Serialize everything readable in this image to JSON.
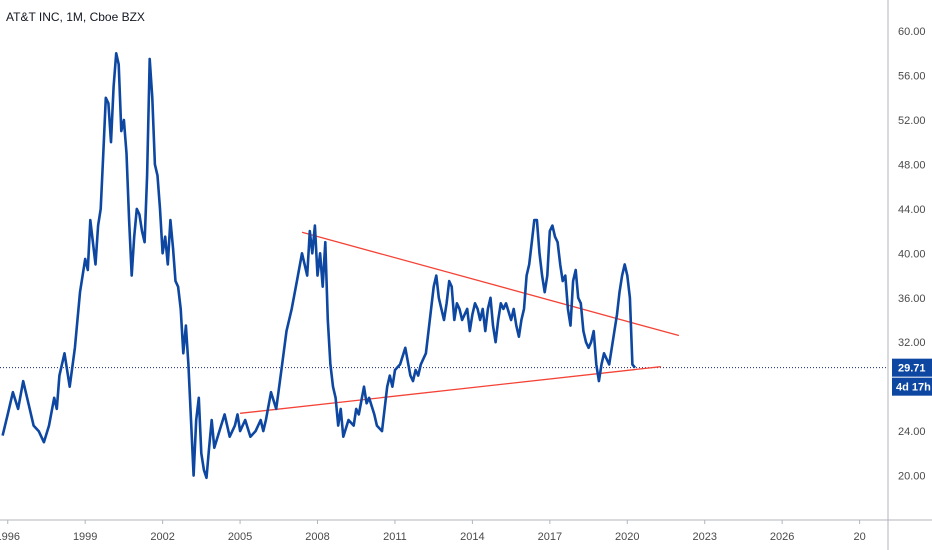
{
  "chart_data": {
    "type": "line",
    "title": "AT&T INC, 1M, Cboe BZX",
    "series": [
      {
        "values": [
          [
            1995.8,
            23.6
          ],
          [
            1996.0,
            25.5
          ],
          [
            1996.2,
            27.5
          ],
          [
            1996.4,
            26.0
          ],
          [
            1996.6,
            28.5
          ],
          [
            1996.8,
            26.5
          ],
          [
            1997.0,
            24.5
          ],
          [
            1997.2,
            24.0
          ],
          [
            1997.4,
            23.0
          ],
          [
            1997.6,
            24.5
          ],
          [
            1997.8,
            27.0
          ],
          [
            1997.9,
            26.0
          ],
          [
            1998.0,
            29.0
          ],
          [
            1998.2,
            31.0
          ],
          [
            1998.4,
            28.0
          ],
          [
            1998.6,
            31.5
          ],
          [
            1998.8,
            36.5
          ],
          [
            1998.9,
            38.0
          ],
          [
            1999.0,
            39.5
          ],
          [
            1999.1,
            38.5
          ],
          [
            1999.2,
            43.0
          ],
          [
            1999.3,
            41.0
          ],
          [
            1999.4,
            39.0
          ],
          [
            1999.5,
            42.5
          ],
          [
            1999.6,
            44.0
          ],
          [
            1999.7,
            49.0
          ],
          [
            1999.8,
            54.0
          ],
          [
            1999.9,
            53.5
          ],
          [
            2000.0,
            50.0
          ],
          [
            2000.1,
            55.0
          ],
          [
            2000.2,
            58.0
          ],
          [
            2000.3,
            57.0
          ],
          [
            2000.4,
            51.0
          ],
          [
            2000.5,
            52.0
          ],
          [
            2000.6,
            49.0
          ],
          [
            2000.7,
            43.0
          ],
          [
            2000.8,
            38.0
          ],
          [
            2000.9,
            41.5
          ],
          [
            2001.0,
            44.0
          ],
          [
            2001.1,
            43.5
          ],
          [
            2001.2,
            42.0
          ],
          [
            2001.3,
            41.0
          ],
          [
            2001.4,
            47.0
          ],
          [
            2001.5,
            57.5
          ],
          [
            2001.6,
            54.0
          ],
          [
            2001.7,
            48.0
          ],
          [
            2001.8,
            47.0
          ],
          [
            2001.9,
            44.0
          ],
          [
            2002.0,
            40.0
          ],
          [
            2002.1,
            41.5
          ],
          [
            2002.2,
            39.0
          ],
          [
            2002.3,
            43.0
          ],
          [
            2002.4,
            40.5
          ],
          [
            2002.5,
            37.5
          ],
          [
            2002.6,
            37.0
          ],
          [
            2002.7,
            35.0
          ],
          [
            2002.8,
            31.0
          ],
          [
            2002.9,
            33.5
          ],
          [
            2003.0,
            30.0
          ],
          [
            2003.1,
            25.0
          ],
          [
            2003.2,
            20.0
          ],
          [
            2003.3,
            25.0
          ],
          [
            2003.4,
            27.0
          ],
          [
            2003.5,
            22.0
          ],
          [
            2003.6,
            20.5
          ],
          [
            2003.7,
            19.8
          ],
          [
            2003.8,
            22.5
          ],
          [
            2003.9,
            25.0
          ],
          [
            2004.0,
            22.5
          ],
          [
            2004.2,
            24.0
          ],
          [
            2004.4,
            25.5
          ],
          [
            2004.6,
            23.5
          ],
          [
            2004.8,
            24.5
          ],
          [
            2004.9,
            25.5
          ],
          [
            2005.0,
            24.0
          ],
          [
            2005.2,
            25.0
          ],
          [
            2005.4,
            23.5
          ],
          [
            2005.6,
            24.0
          ],
          [
            2005.8,
            25.0
          ],
          [
            2005.9,
            24.0
          ],
          [
            2006.0,
            25.0
          ],
          [
            2006.2,
            27.5
          ],
          [
            2006.4,
            26.0
          ],
          [
            2006.6,
            29.5
          ],
          [
            2006.8,
            33.0
          ],
          [
            2006.9,
            34.0
          ],
          [
            2007.0,
            35.0
          ],
          [
            2007.2,
            37.5
          ],
          [
            2007.4,
            40.0
          ],
          [
            2007.6,
            38.0
          ],
          [
            2007.7,
            42.0
          ],
          [
            2007.8,
            40.0
          ],
          [
            2007.9,
            42.5
          ],
          [
            2008.0,
            38.0
          ],
          [
            2008.1,
            40.0
          ],
          [
            2008.2,
            37.0
          ],
          [
            2008.3,
            41.0
          ],
          [
            2008.4,
            34.0
          ],
          [
            2008.5,
            30.0
          ],
          [
            2008.6,
            28.0
          ],
          [
            2008.7,
            27.0
          ],
          [
            2008.8,
            24.5
          ],
          [
            2008.9,
            26.0
          ],
          [
            2009.0,
            23.5
          ],
          [
            2009.2,
            25.0
          ],
          [
            2009.4,
            24.5
          ],
          [
            2009.5,
            26.0
          ],
          [
            2009.6,
            25.5
          ],
          [
            2009.8,
            28.0
          ],
          [
            2009.9,
            26.5
          ],
          [
            2010.0,
            27.0
          ],
          [
            2010.2,
            25.5
          ],
          [
            2010.3,
            24.5
          ],
          [
            2010.5,
            24.0
          ],
          [
            2010.6,
            26.0
          ],
          [
            2010.7,
            28.0
          ],
          [
            2010.8,
            29.0
          ],
          [
            2010.9,
            28.0
          ],
          [
            2011.0,
            29.5
          ],
          [
            2011.2,
            30.0
          ],
          [
            2011.4,
            31.5
          ],
          [
            2011.6,
            29.0
          ],
          [
            2011.7,
            28.5
          ],
          [
            2011.8,
            29.5
          ],
          [
            2011.9,
            29.0
          ],
          [
            2012.0,
            30.0
          ],
          [
            2012.2,
            31.0
          ],
          [
            2012.3,
            33.0
          ],
          [
            2012.4,
            35.0
          ],
          [
            2012.5,
            37.0
          ],
          [
            2012.6,
            38.0
          ],
          [
            2012.7,
            36.0
          ],
          [
            2012.8,
            35.0
          ],
          [
            2012.9,
            34.0
          ],
          [
            2013.0,
            35.5
          ],
          [
            2013.1,
            37.5
          ],
          [
            2013.2,
            37.0
          ],
          [
            2013.3,
            34.0
          ],
          [
            2013.4,
            35.5
          ],
          [
            2013.5,
            35.0
          ],
          [
            2013.6,
            34.0
          ],
          [
            2013.8,
            35.0
          ],
          [
            2013.9,
            33.0
          ],
          [
            2014.0,
            34.5
          ],
          [
            2014.1,
            35.5
          ],
          [
            2014.2,
            35.0
          ],
          [
            2014.3,
            34.0
          ],
          [
            2014.4,
            35.0
          ],
          [
            2014.5,
            33.0
          ],
          [
            2014.6,
            35.0
          ],
          [
            2014.7,
            36.0
          ],
          [
            2014.8,
            33.5
          ],
          [
            2014.9,
            32.0
          ],
          [
            2015.0,
            34.0
          ],
          [
            2015.1,
            35.5
          ],
          [
            2015.2,
            35.0
          ],
          [
            2015.3,
            35.5
          ],
          [
            2015.5,
            34.0
          ],
          [
            2015.6,
            35.0
          ],
          [
            2015.7,
            33.5
          ],
          [
            2015.8,
            32.5
          ],
          [
            2015.9,
            34.0
          ],
          [
            2016.0,
            35.0
          ],
          [
            2016.1,
            38.0
          ],
          [
            2016.2,
            39.0
          ],
          [
            2016.3,
            41.0
          ],
          [
            2016.4,
            43.0
          ],
          [
            2016.5,
            43.0
          ],
          [
            2016.6,
            40.0
          ],
          [
            2016.7,
            38.0
          ],
          [
            2016.8,
            36.5
          ],
          [
            2016.9,
            38.0
          ],
          [
            2017.0,
            42.0
          ],
          [
            2017.1,
            42.5
          ],
          [
            2017.2,
            41.5
          ],
          [
            2017.3,
            41.0
          ],
          [
            2017.4,
            39.0
          ],
          [
            2017.5,
            37.5
          ],
          [
            2017.6,
            38.0
          ],
          [
            2017.7,
            35.0
          ],
          [
            2017.8,
            33.5
          ],
          [
            2017.9,
            37.5
          ],
          [
            2018.0,
            38.5
          ],
          [
            2018.1,
            36.0
          ],
          [
            2018.2,
            35.5
          ],
          [
            2018.3,
            33.0
          ],
          [
            2018.4,
            32.0
          ],
          [
            2018.5,
            31.5
          ],
          [
            2018.6,
            32.0
          ],
          [
            2018.7,
            33.0
          ],
          [
            2018.8,
            30.0
          ],
          [
            2018.9,
            28.5
          ],
          [
            2019.0,
            30.0
          ],
          [
            2019.1,
            31.0
          ],
          [
            2019.2,
            30.5
          ],
          [
            2019.3,
            30.0
          ],
          [
            2019.4,
            31.5
          ],
          [
            2019.5,
            33.0
          ],
          [
            2019.6,
            34.5
          ],
          [
            2019.7,
            36.5
          ],
          [
            2019.8,
            38.0
          ],
          [
            2019.9,
            39.0
          ],
          [
            2020.0,
            38.0
          ],
          [
            2020.1,
            36.0
          ],
          [
            2020.2,
            30.0
          ],
          [
            2020.3,
            29.71
          ]
        ]
      }
    ],
    "trendlines": [
      {
        "from": [
          2007.4,
          41.9
        ],
        "to": [
          2022.0,
          32.6
        ]
      },
      {
        "from": [
          2005.0,
          25.6
        ],
        "to": [
          2021.3,
          29.8
        ]
      }
    ],
    "last_price": "29.71",
    "countdown": "4d 17h",
    "x_ticks": [
      "1996",
      "1999",
      "2002",
      "2005",
      "2008",
      "2011",
      "2014",
      "2017",
      "2020",
      "2023",
      "2026",
      "20"
    ],
    "y_ticks": [
      "60.00",
      "56.00",
      "52.00",
      "48.00",
      "44.00",
      "40.00",
      "36.00",
      "32.00",
      "24.00",
      "20.00"
    ],
    "xlim": [
      1995.7,
      2030.1
    ],
    "ylim": [
      16.0,
      62.8
    ],
    "grid": false,
    "colors": {
      "line": "#0d47a1",
      "trend": "#f44336",
      "tag": "#0d47a1",
      "axis": "#b2b5be",
      "price_line": "#1a237e"
    }
  }
}
